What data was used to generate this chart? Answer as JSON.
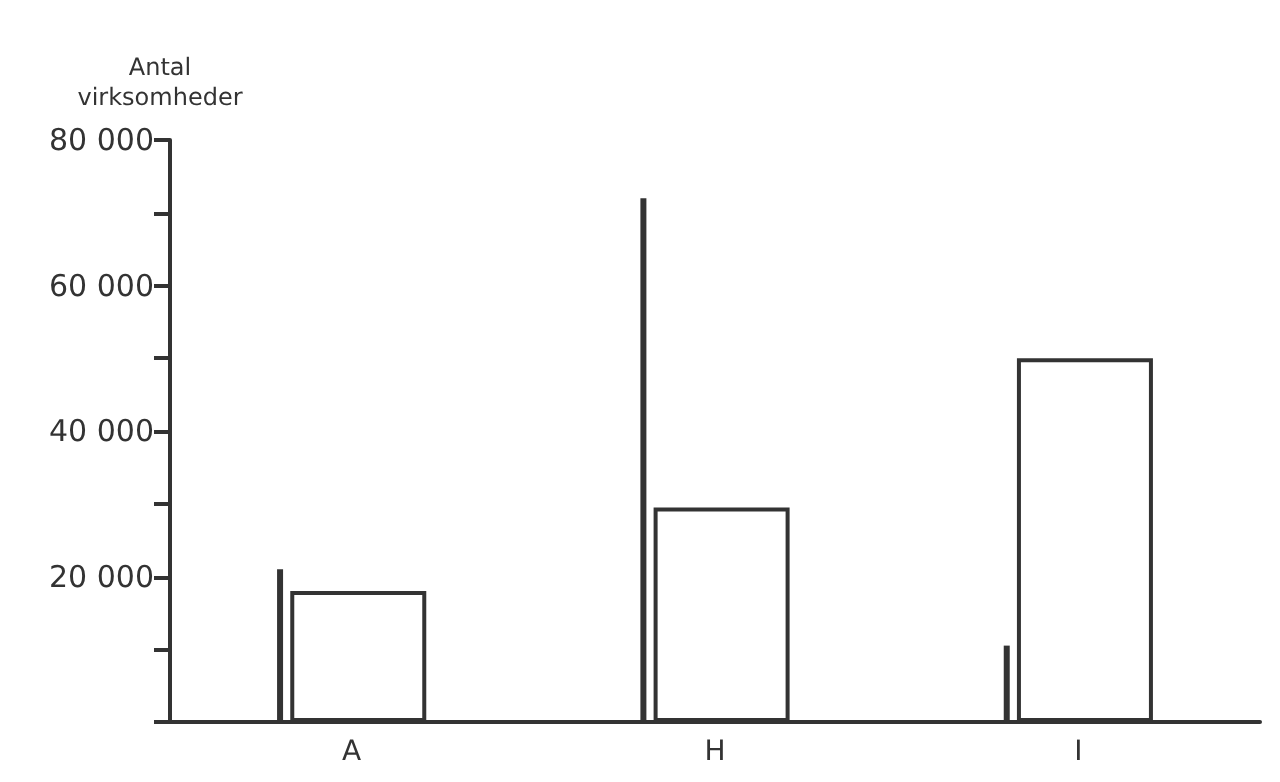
{
  "chart_data": {
    "type": "bar",
    "ylabel": "Antal virksomheder",
    "categories": [
      "A",
      "H",
      "I"
    ],
    "series": [
      {
        "color": "#333333",
        "values": [
          21000,
          72000,
          10500
        ]
      },
      {
        "color": "#ffffff",
        "values": [
          18000,
          29500,
          50000
        ]
      }
    ],
    "ylim": [
      0,
      80000
    ],
    "yticks": [
      {
        "value": 0,
        "label": null
      },
      {
        "value": 10000,
        "label": null
      },
      {
        "value": 20000,
        "label": "20 000"
      },
      {
        "value": 30000,
        "label": null
      },
      {
        "value": 40000,
        "label": "40 000"
      },
      {
        "value": 50000,
        "label": null
      },
      {
        "value": 60000,
        "label": "60 000"
      },
      {
        "value": 70000,
        "label": null
      },
      {
        "value": 80000,
        "label": "80 000"
      }
    ],
    "grid": false
  }
}
